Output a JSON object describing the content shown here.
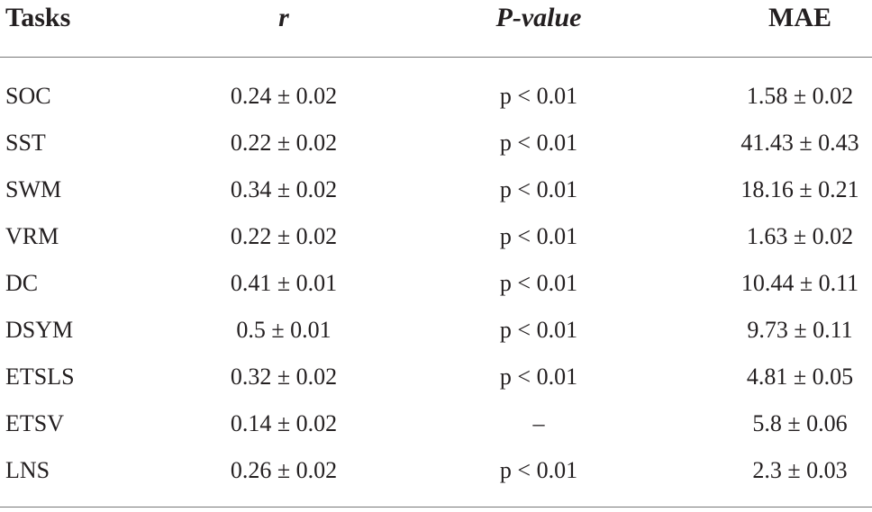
{
  "table": {
    "header": [
      "Tasks",
      "r",
      "P-value",
      "MAE"
    ],
    "rows": [
      [
        "SOC",
        "0.24 ± 0.02",
        "p < 0.01",
        "1.58 ± 0.02"
      ],
      [
        "SST",
        "0.22 ± 0.02",
        "p < 0.01",
        "41.43 ± 0.43"
      ],
      [
        "SWM",
        "0.34 ± 0.02",
        "p < 0.01",
        "18.16 ± 0.21"
      ],
      [
        "VRM",
        "0.22 ± 0.02",
        "p < 0.01",
        "1.63 ± 0.02"
      ],
      [
        "DC",
        "0.41 ± 0.01",
        "p < 0.01",
        "10.44 ± 0.11"
      ],
      [
        "DSYM",
        "0.5 ± 0.01",
        "p < 0.01",
        "9.73 ± 0.11"
      ],
      [
        "ETSLS",
        "0.32 ± 0.02",
        "p < 0.01",
        "4.81 ± 0.05"
      ],
      [
        "ETSV",
        "0.14 ± 0.02",
        "–",
        "5.8 ± 0.06"
      ],
      [
        "LNS",
        "0.26 ± 0.02",
        "p < 0.01",
        "2.3 ± 0.03"
      ]
    ]
  }
}
